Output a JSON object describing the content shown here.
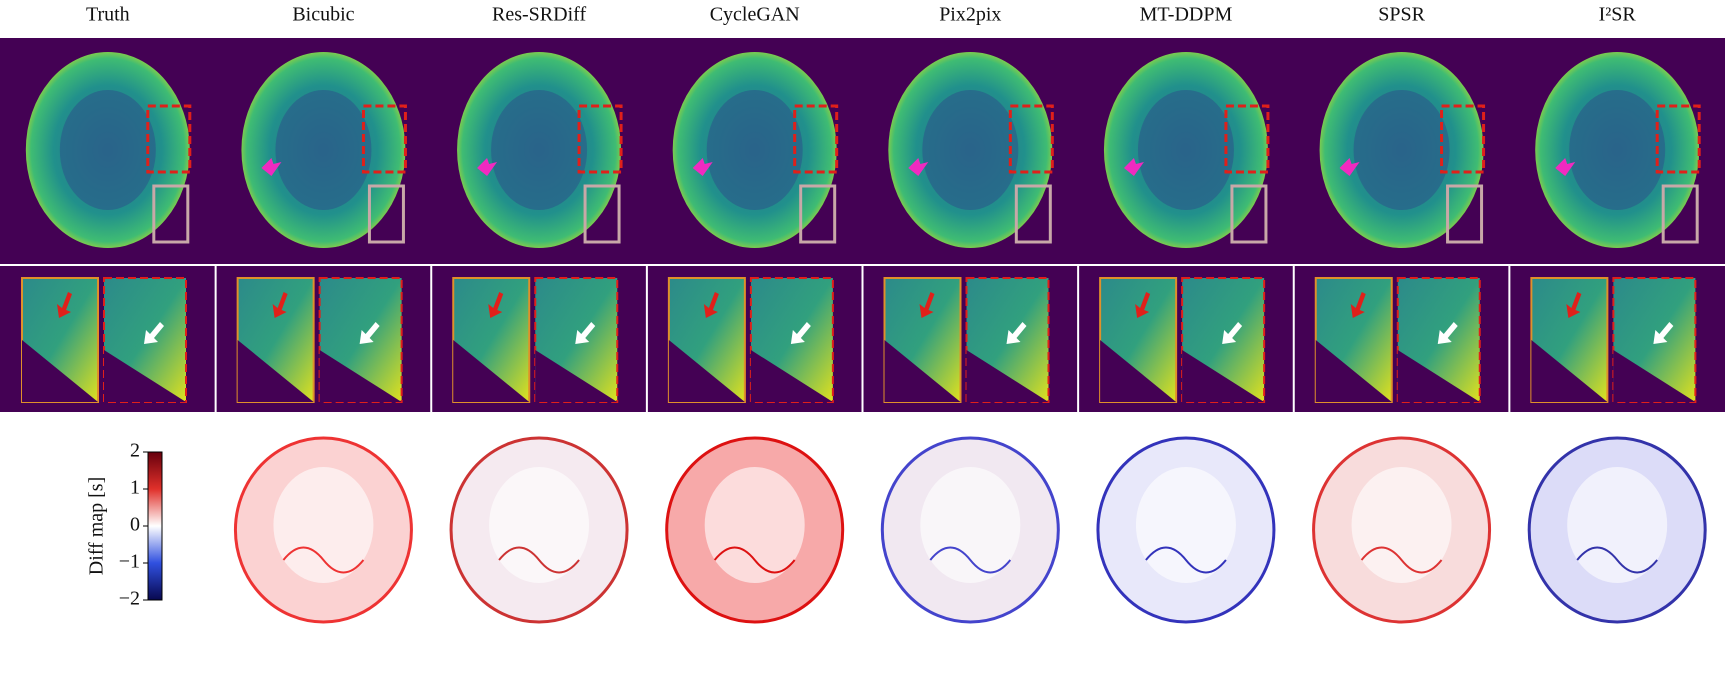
{
  "columns": [
    "Truth",
    "Bicubic",
    "Res-SRDiff",
    "CycleGAN",
    "Pix2pix",
    "MT-DDPM",
    "SPSR",
    "I²SR"
  ],
  "colorbar": {
    "label": "Diff map [s]",
    "lim": [
      -2,
      2
    ],
    "ticks": [
      2,
      1,
      0,
      {
        "value": -1,
        "label": "−1"
      },
      {
        "value": -2,
        "label": "−2"
      }
    ]
  }
}
